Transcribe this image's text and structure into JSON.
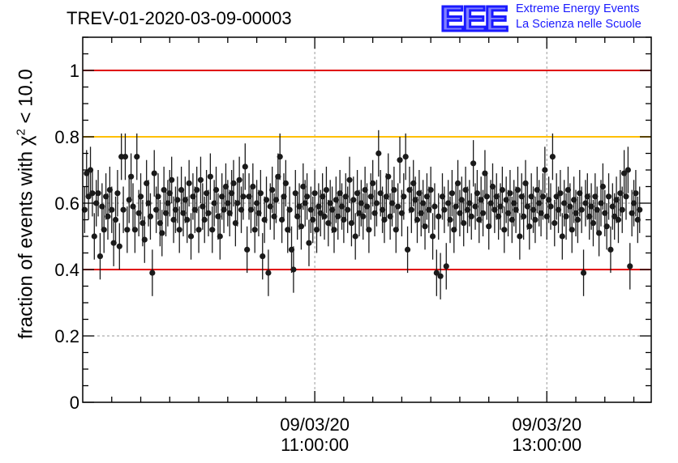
{
  "header": {
    "run_id": "TREV-01-2020-03-09-00003",
    "logo_letters": "EEE",
    "logo_line1": "Extreme Energy Events",
    "logo_line2": "La Scienza nelle Scuole"
  },
  "colors": {
    "red_line": "#e00000",
    "orange_line": "#ffbf00",
    "points": "#1a1a1a",
    "grid": "#9a9a9a",
    "logo": "#1a1aff"
  },
  "chart_data": {
    "type": "scatter",
    "title": "TREV-01-2020-03-09-00003",
    "ylabel_text": "fraction of events with χ",
    "ylabel_sup": "2",
    "ylabel_tail": " < 10.0",
    "ylim": [
      0,
      1.1
    ],
    "xlim_minutes": [
      540,
      834
    ],
    "yticks": [
      {
        "value": 0,
        "label": "0"
      },
      {
        "value": 0.2,
        "label": "0.2"
      },
      {
        "value": 0.4,
        "label": "0.4"
      },
      {
        "value": 0.6,
        "label": "0.6"
      },
      {
        "value": 0.8,
        "label": "0.8"
      },
      {
        "value": 1.0,
        "label": "1"
      }
    ],
    "xticks": [
      {
        "minute": 660,
        "date": "09/03/20",
        "time": "11:00:00"
      },
      {
        "minute": 780,
        "date": "09/03/20",
        "time": "13:00:00"
      }
    ],
    "reference_lines": [
      {
        "value": 1.0,
        "color": "#e00000"
      },
      {
        "value": 0.8,
        "color": "#ffbf00"
      },
      {
        "value": 0.4,
        "color": "#e00000"
      }
    ],
    "grid": true,
    "error_bar": 0.07,
    "series": [
      {
        "x_start_minute": 541,
        "x_step_minutes": 1,
        "values": [
          0.58,
          0.69,
          0.62,
          0.7,
          0.63,
          0.5,
          0.6,
          0.63,
          0.44,
          0.59,
          0.52,
          0.62,
          0.56,
          0.64,
          0.58,
          0.48,
          0.55,
          0.63,
          0.47,
          0.74,
          0.58,
          0.74,
          0.52,
          0.61,
          0.68,
          0.59,
          0.52,
          0.74,
          0.57,
          0.62,
          0.54,
          0.49,
          0.66,
          0.6,
          0.56,
          0.39,
          0.69,
          0.58,
          0.62,
          0.54,
          0.51,
          0.64,
          0.57,
          0.6,
          0.63,
          0.67,
          0.55,
          0.58,
          0.61,
          0.52,
          0.64,
          0.57,
          0.61,
          0.55,
          0.66,
          0.5,
          0.62,
          0.58,
          0.64,
          0.52,
          0.67,
          0.59,
          0.55,
          0.63,
          0.57,
          0.68,
          0.52,
          0.6,
          0.64,
          0.56,
          0.5,
          0.62,
          0.58,
          0.65,
          0.6,
          0.57,
          0.63,
          0.66,
          0.54,
          0.6,
          0.67,
          0.58,
          0.62,
          0.71,
          0.46,
          0.62,
          0.58,
          0.65,
          0.52,
          0.6,
          0.57,
          0.63,
          0.44,
          0.55,
          0.61,
          0.39,
          0.59,
          0.64,
          0.56,
          0.61,
          0.68,
          0.74,
          0.55,
          0.62,
          0.66,
          0.52,
          0.58,
          0.46,
          0.4,
          0.63,
          0.56,
          0.59,
          0.53,
          0.65,
          0.6,
          0.62,
          0.48,
          0.58,
          0.55,
          0.63,
          0.52,
          0.59,
          0.57,
          0.62,
          0.56,
          0.64,
          0.54,
          0.6,
          0.58,
          0.52,
          0.61,
          0.56,
          0.63,
          0.59,
          0.55,
          0.62,
          0.58,
          0.67,
          0.54,
          0.61,
          0.5,
          0.63,
          0.57,
          0.6,
          0.56,
          0.64,
          0.59,
          0.52,
          0.62,
          0.66,
          0.57,
          0.6,
          0.75,
          0.63,
          0.58,
          0.55,
          0.62,
          0.68,
          0.56,
          0.6,
          0.64,
          0.52,
          0.59,
          0.73,
          0.57,
          0.62,
          0.74,
          0.46,
          0.64,
          0.58,
          0.66,
          0.61,
          0.55,
          0.63,
          0.57,
          0.6,
          0.53,
          0.62,
          0.58,
          0.64,
          0.5,
          0.59,
          0.39,
          0.56,
          0.38,
          0.62,
          0.58,
          0.41,
          0.6,
          0.55,
          0.63,
          0.52,
          0.59,
          0.66,
          0.57,
          0.61,
          0.54,
          0.64,
          0.58,
          0.6,
          0.56,
          0.72,
          0.59,
          0.63,
          0.55,
          0.61,
          0.57,
          0.69,
          0.62,
          0.53,
          0.6,
          0.65,
          0.58,
          0.62,
          0.56,
          0.59,
          0.64,
          0.52,
          0.61,
          0.57,
          0.63,
          0.55,
          0.6,
          0.58,
          0.64,
          0.5,
          0.62,
          0.56,
          0.66,
          0.59,
          0.53,
          0.62,
          0.58,
          0.55,
          0.64,
          0.6,
          0.57,
          0.62,
          0.7,
          0.56,
          0.61,
          0.59,
          0.74,
          0.54,
          0.62,
          0.58,
          0.63,
          0.5,
          0.6,
          0.56,
          0.64,
          0.59,
          0.52,
          0.61,
          0.57,
          0.55,
          0.63,
          0.58,
          0.39,
          0.6,
          0.62,
          0.56,
          0.59,
          0.54,
          0.62,
          0.58,
          0.51,
          0.6,
          0.65,
          0.57,
          0.53,
          0.62,
          0.46,
          0.59,
          0.56,
          0.61,
          0.55,
          0.63,
          0.58,
          0.69,
          0.62,
          0.7,
          0.41,
          0.57,
          0.6,
          0.63,
          0.55,
          0.58
        ]
      }
    ]
  }
}
